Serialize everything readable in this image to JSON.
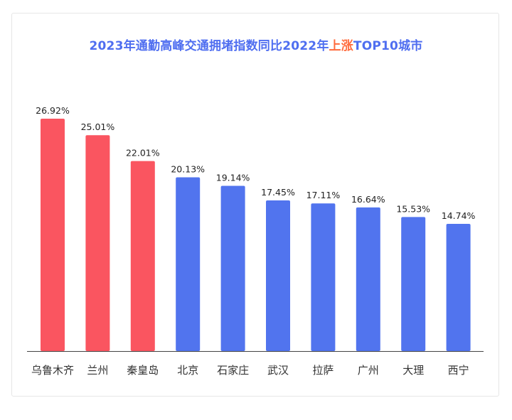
{
  "title": {
    "part1": "2023年通勤高峰交通拥堵指数同比2022年",
    "highlight": "上涨",
    "part2": "TOP10城市"
  },
  "colors": {
    "title": "#4f6ef0",
    "highlight": "#ff6b3d",
    "top3_bar": "#fa5560",
    "other_bar": "#5174ee"
  },
  "chart_data": {
    "type": "bar",
    "title": "2023年通勤高峰交通拥堵指数同比2022年上涨TOP10城市",
    "categories": [
      "乌鲁木齐",
      "兰州",
      "秦皇岛",
      "北京",
      "石家庄",
      "武汉",
      "拉萨",
      "广州",
      "大理",
      "西宁"
    ],
    "values": [
      26.92,
      25.01,
      22.01,
      20.13,
      19.14,
      17.45,
      17.11,
      16.64,
      15.53,
      14.74
    ],
    "labels": [
      "26.92%",
      "25.01%",
      "22.01%",
      "20.13%",
      "19.14%",
      "17.45%",
      "17.11%",
      "16.64%",
      "15.53%",
      "14.74%"
    ],
    "highlighted_count": 3,
    "ylim": [
      0,
      26.92
    ],
    "grid": false,
    "legend": "none"
  }
}
